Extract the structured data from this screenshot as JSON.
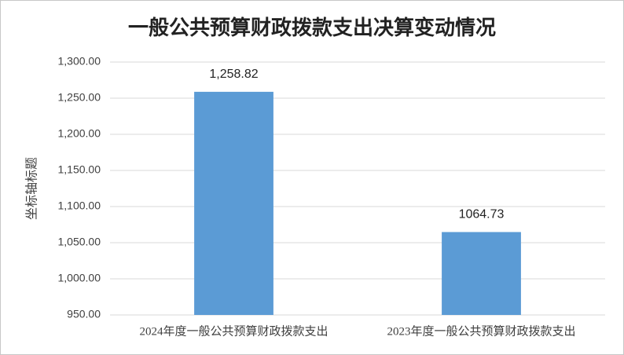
{
  "chart_data": {
    "type": "bar",
    "title": "一般公共预算财政拨款支出决算变动情况",
    "y_label": "坐标轴标题",
    "categories": [
      "2024年度一般公共预算财政拨款支出",
      "2023年度一般公共预算财政拨款支出"
    ],
    "values": [
      1258.82,
      1064.73
    ],
    "value_labels": [
      "1,258.82",
      "1064.73"
    ],
    "color": "#5b9bd5",
    "ylim": [
      950,
      1300
    ],
    "yticks": [
      {
        "value": 950,
        "label": "950.00"
      },
      {
        "value": 1000,
        "label": "1,000.00"
      },
      {
        "value": 1050,
        "label": "1,050.00"
      },
      {
        "value": 1100,
        "label": "1,100.00"
      },
      {
        "value": 1150,
        "label": "1,150.00"
      },
      {
        "value": 1200,
        "label": "1,200.00"
      },
      {
        "value": 1250,
        "label": "1,250.00"
      },
      {
        "value": 1300,
        "label": "1,300.00"
      }
    ],
    "grid": true
  }
}
